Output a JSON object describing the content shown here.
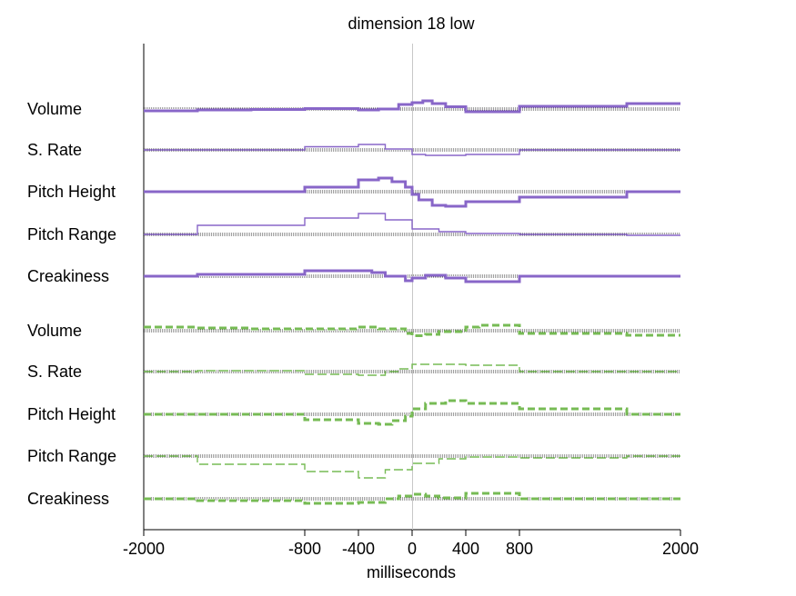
{
  "chart_data": {
    "type": "line",
    "title": "dimension 18 low",
    "xlabel": "milliseconds",
    "ylabel": "",
    "xlim": [
      -2000,
      2000
    ],
    "x_ticks": [
      -2000,
      -800,
      -400,
      0,
      400,
      800,
      2000
    ],
    "x_tick_labels": [
      "-2000",
      "-800",
      "-400",
      "0",
      "400",
      "800",
      "2000"
    ],
    "grid": false,
    "vertical_reference_line_at": 0,
    "colors": {
      "purple": "#8866c8",
      "green": "#77bb55",
      "baseline": "#000000",
      "zero_line": "#c8c8c8"
    },
    "groups": [
      {
        "color": "purple",
        "style": "solid",
        "rows": [
          {
            "label": "Volume",
            "steps": [
              {
                "x": -2000,
                "y": -0.2
              },
              {
                "x": -1600,
                "y": -0.1
              },
              {
                "x": -1200,
                "y": -0.05
              },
              {
                "x": -800,
                "y": 0.05
              },
              {
                "x": -400,
                "y": -0.1
              },
              {
                "x": -250,
                "y": 0.0
              },
              {
                "x": -100,
                "y": 0.5
              },
              {
                "x": 0,
                "y": 0.7
              },
              {
                "x": 80,
                "y": 0.9
              },
              {
                "x": 150,
                "y": 0.6
              },
              {
                "x": 250,
                "y": 0.25
              },
              {
                "x": 400,
                "y": -0.3
              },
              {
                "x": 800,
                "y": 0.3
              },
              {
                "x": 1600,
                "y": 0.6
              },
              {
                "x": 2000,
                "y": 0.6
              }
            ],
            "width": "thick"
          },
          {
            "label": "S. Rate",
            "steps": [
              {
                "x": -2000,
                "y": 0
              },
              {
                "x": -800,
                "y": 0.35
              },
              {
                "x": -400,
                "y": 0.6
              },
              {
                "x": -200,
                "y": 0.1
              },
              {
                "x": 0,
                "y": -0.5
              },
              {
                "x": 100,
                "y": -0.6
              },
              {
                "x": 400,
                "y": -0.5
              },
              {
                "x": 800,
                "y": 0
              },
              {
                "x": 2000,
                "y": 0
              }
            ],
            "width": "thin"
          },
          {
            "label": "Pitch Height",
            "steps": [
              {
                "x": -2000,
                "y": 0
              },
              {
                "x": -800,
                "y": 0.5
              },
              {
                "x": -400,
                "y": 1.3
              },
              {
                "x": -250,
                "y": 1.5
              },
              {
                "x": -150,
                "y": 1.1
              },
              {
                "x": -50,
                "y": 0.5
              },
              {
                "x": 0,
                "y": -0.3
              },
              {
                "x": 50,
                "y": -0.9
              },
              {
                "x": 150,
                "y": -1.5
              },
              {
                "x": 250,
                "y": -1.6
              },
              {
                "x": 400,
                "y": -1.1
              },
              {
                "x": 800,
                "y": -0.6
              },
              {
                "x": 1600,
                "y": 0
              },
              {
                "x": 2000,
                "y": 0
              }
            ],
            "width": "thick"
          },
          {
            "label": "Pitch Range",
            "steps": [
              {
                "x": -2000,
                "y": 0
              },
              {
                "x": -1600,
                "y": 1.0
              },
              {
                "x": -800,
                "y": 1.8
              },
              {
                "x": -400,
                "y": 2.3
              },
              {
                "x": -200,
                "y": 1.6
              },
              {
                "x": 0,
                "y": 0.6
              },
              {
                "x": 200,
                "y": 0.3
              },
              {
                "x": 400,
                "y": 0.1
              },
              {
                "x": 800,
                "y": 0.0
              },
              {
                "x": 1600,
                "y": -0.1
              },
              {
                "x": 2000,
                "y": -0.1
              }
            ],
            "width": "thin"
          },
          {
            "label": "Creakiness",
            "steps": [
              {
                "x": -2000,
                "y": 0
              },
              {
                "x": -1600,
                "y": 0.2
              },
              {
                "x": -800,
                "y": 0.6
              },
              {
                "x": -300,
                "y": 0.4
              },
              {
                "x": -200,
                "y": 0
              },
              {
                "x": -50,
                "y": -0.5
              },
              {
                "x": 0,
                "y": -0.2
              },
              {
                "x": 100,
                "y": 0.1
              },
              {
                "x": 250,
                "y": -0.2
              },
              {
                "x": 400,
                "y": -0.6
              },
              {
                "x": 800,
                "y": 0
              },
              {
                "x": 2000,
                "y": 0
              }
            ],
            "width": "thick"
          }
        ]
      },
      {
        "color": "green",
        "style": "dashed",
        "rows": [
          {
            "label": "Volume",
            "steps": [
              {
                "x": -2000,
                "y": 0.4
              },
              {
                "x": -1600,
                "y": 0.3
              },
              {
                "x": -1200,
                "y": 0.2
              },
              {
                "x": -400,
                "y": 0.4
              },
              {
                "x": -250,
                "y": 0.2
              },
              {
                "x": -50,
                "y": -0.3
              },
              {
                "x": 0,
                "y": -0.55
              },
              {
                "x": 100,
                "y": -0.4
              },
              {
                "x": 200,
                "y": -0.1
              },
              {
                "x": 400,
                "y": 0.4
              },
              {
                "x": 500,
                "y": 0.6
              },
              {
                "x": 800,
                "y": -0.3
              },
              {
                "x": 1600,
                "y": -0.5
              },
              {
                "x": 2000,
                "y": -0.5
              }
            ],
            "width": "thick"
          },
          {
            "label": "S. Rate",
            "steps": [
              {
                "x": -2000,
                "y": 0
              },
              {
                "x": -1600,
                "y": 0.1
              },
              {
                "x": -800,
                "y": -0.3
              },
              {
                "x": -400,
                "y": -0.4
              },
              {
                "x": -200,
                "y": 0.0
              },
              {
                "x": -100,
                "y": 0.3
              },
              {
                "x": 0,
                "y": 0.8
              },
              {
                "x": 400,
                "y": 0.7
              },
              {
                "x": 800,
                "y": 0
              },
              {
                "x": 2000,
                "y": 0
              }
            ],
            "width": "thin"
          },
          {
            "label": "Pitch Height",
            "steps": [
              {
                "x": -2000,
                "y": 0
              },
              {
                "x": -800,
                "y": -0.6
              },
              {
                "x": -400,
                "y": -1.0
              },
              {
                "x": -250,
                "y": -1.1
              },
              {
                "x": -150,
                "y": -0.7
              },
              {
                "x": -50,
                "y": -0.2
              },
              {
                "x": 0,
                "y": 0.6
              },
              {
                "x": 100,
                "y": 1.2
              },
              {
                "x": 250,
                "y": 1.5
              },
              {
                "x": 400,
                "y": 1.2
              },
              {
                "x": 800,
                "y": 0.6
              },
              {
                "x": 1600,
                "y": 0
              },
              {
                "x": 2000,
                "y": 0
              }
            ],
            "width": "thick"
          },
          {
            "label": "Pitch Range",
            "steps": [
              {
                "x": -2000,
                "y": 0
              },
              {
                "x": -1600,
                "y": -0.9
              },
              {
                "x": -800,
                "y": -1.7
              },
              {
                "x": -400,
                "y": -2.4
              },
              {
                "x": -200,
                "y": -1.5
              },
              {
                "x": 0,
                "y": -0.8
              },
              {
                "x": 200,
                "y": -0.3
              },
              {
                "x": 400,
                "y": -0.1
              },
              {
                "x": 800,
                "y": -0.2
              },
              {
                "x": 1600,
                "y": 0
              },
              {
                "x": 2000,
                "y": 0
              }
            ],
            "width": "thin"
          },
          {
            "label": "Creakiness",
            "steps": [
              {
                "x": -2000,
                "y": 0
              },
              {
                "x": -1600,
                "y": -0.2
              },
              {
                "x": -800,
                "y": -0.5
              },
              {
                "x": -400,
                "y": -0.4
              },
              {
                "x": -200,
                "y": 0
              },
              {
                "x": -100,
                "y": 0.3
              },
              {
                "x": 0,
                "y": 0.5
              },
              {
                "x": 100,
                "y": 0.3
              },
              {
                "x": 200,
                "y": 0.1
              },
              {
                "x": 400,
                "y": 0.6
              },
              {
                "x": 800,
                "y": 0
              },
              {
                "x": 2000,
                "y": 0
              }
            ],
            "width": "thick"
          }
        ]
      }
    ]
  }
}
